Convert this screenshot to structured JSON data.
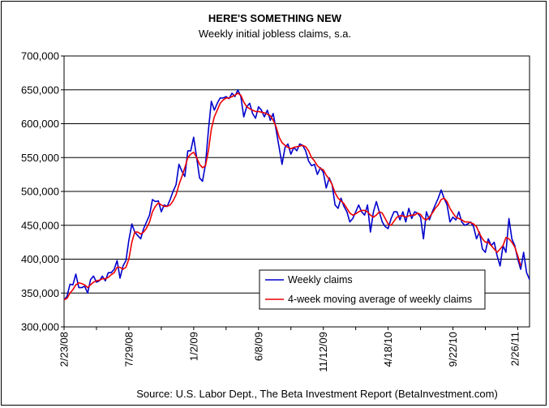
{
  "chart_data": {
    "type": "line",
    "title": "HERE'S SOMETHING NEW",
    "subtitle": "Weekly initial jobless claims, s.a.",
    "source": "Source: U.S. Labor Dept., The Beta Investment Report (BetaInvestment.com)",
    "xlabel": "",
    "ylabel": "",
    "ylim": [
      300000,
      700000
    ],
    "y_ticks": [
      300000,
      350000,
      400000,
      450000,
      500000,
      550000,
      600000,
      650000,
      700000
    ],
    "y_tick_labels": [
      "300,000",
      "350,000",
      "400,000",
      "450,000",
      "500,000",
      "550,000",
      "600,000",
      "650,000",
      "700,000"
    ],
    "x_tick_labels": [
      "2/23/08",
      "7/29/08",
      "1/2/09",
      "6/8/09",
      "11/12/09",
      "4/18/10",
      "9/22/10",
      "2/26/11"
    ],
    "x_tick_weeks": [
      0,
      22,
      44,
      66,
      88,
      110,
      132,
      153
    ],
    "grid": true,
    "legend_position": "lower-right",
    "colors": {
      "weekly": "#0000cc",
      "moving_avg": "#ee0000",
      "plot_bg": "#ffffff"
    },
    "series": [
      {
        "name": "Weekly claims",
        "values": [
          340000,
          345000,
          363000,
          362000,
          378000,
          358000,
          358000,
          360000,
          350000,
          370000,
          375000,
          366000,
          368000,
          375000,
          368000,
          380000,
          380000,
          385000,
          398000,
          372000,
          390000,
          398000,
          428000,
          452000,
          440000,
          435000,
          430000,
          445000,
          455000,
          465000,
          488000,
          485000,
          486000,
          470000,
          480000,
          478000,
          488000,
          500000,
          510000,
          540000,
          530000,
          522000,
          560000,
          560000,
          580000,
          550000,
          520000,
          515000,
          540000,
          590000,
          633000,
          620000,
          630000,
          638000,
          638000,
          640000,
          637000,
          645000,
          640000,
          650000,
          640000,
          610000,
          625000,
          630000,
          615000,
          608000,
          625000,
          620000,
          610000,
          620000,
          605000,
          615000,
          590000,
          565000,
          540000,
          565000,
          570000,
          555000,
          565000,
          560000,
          570000,
          568000,
          560000,
          545000,
          538000,
          540000,
          525000,
          535000,
          528000,
          505000,
          520000,
          510000,
          480000,
          475000,
          490000,
          478000,
          470000,
          455000,
          460000,
          470000,
          480000,
          470000,
          465000,
          480000,
          440000,
          470000,
          485000,
          470000,
          455000,
          448000,
          445000,
          460000,
          470000,
          470000,
          458000,
          470000,
          455000,
          475000,
          460000,
          470000,
          468000,
          462000,
          430000,
          470000,
          458000,
          470000,
          480000,
          490000,
          502000,
          490000,
          480000,
          455000,
          462000,
          458000,
          470000,
          455000,
          450000,
          452000,
          455000,
          448000,
          430000,
          440000,
          415000,
          410000,
          430000,
          420000,
          425000,
          405000,
          390000,
          420000,
          410000,
          460000,
          430000,
          420000,
          400000,
          385000,
          410000,
          380000,
          370000
        ]
      },
      {
        "name": "4-week moving average of weekly claims",
        "values": [
          340000,
          342000,
          350000,
          355000,
          362000,
          365000,
          364000,
          362000,
          358000,
          362000,
          366000,
          368000,
          369000,
          371000,
          371000,
          373000,
          377000,
          380000,
          388000,
          388000,
          385000,
          388000,
          400000,
          425000,
          440000,
          440000,
          437000,
          440000,
          446000,
          455000,
          470000,
          478000,
          483000,
          480000,
          478000,
          478000,
          480000,
          486000,
          495000,
          510000,
          522000,
          535000,
          550000,
          555000,
          558000,
          550000,
          540000,
          535000,
          538000,
          560000,
          592000,
          610000,
          620000,
          630000,
          635000,
          638000,
          638000,
          640000,
          642000,
          645000,
          642000,
          632000,
          625000,
          622000,
          620000,
          618000,
          618000,
          617000,
          616000,
          614000,
          612000,
          605000,
          595000,
          580000,
          572000,
          568000,
          565000,
          563000,
          565000,
          566000,
          567000,
          568000,
          566000,
          560000,
          550000,
          545000,
          538000,
          534000,
          532000,
          524000,
          518000,
          510000,
          498000,
          490000,
          486000,
          482000,
          475000,
          468000,
          465000,
          467000,
          470000,
          472000,
          472000,
          470000,
          465000,
          462000,
          465000,
          470000,
          468000,
          460000,
          452000,
          450000,
          456000,
          462000,
          464000,
          464000,
          462000,
          464000,
          465000,
          465000,
          468000,
          466000,
          460000,
          458000,
          462000,
          468000,
          475000,
          480000,
          488000,
          490000,
          485000,
          475000,
          468000,
          462000,
          460000,
          458000,
          455000,
          455000,
          454000,
          452000,
          448000,
          438000,
          430000,
          425000,
          425000,
          420000,
          415000,
          410000,
          415000,
          420000,
          432000,
          430000,
          425000,
          418000,
          405000,
          390000
        ]
      }
    ]
  }
}
